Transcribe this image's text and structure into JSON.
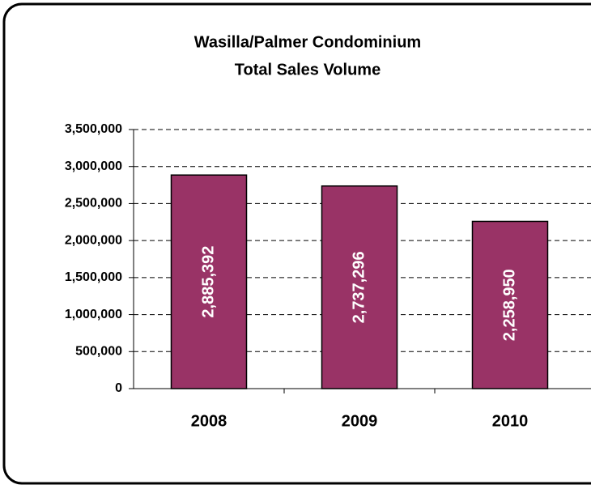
{
  "chart_data": {
    "type": "bar",
    "title": [
      "Wasilla/Palmer Condominium",
      "Total Sales Volume"
    ],
    "categories": [
      "2008",
      "2009",
      "2010"
    ],
    "values": [
      2885392,
      2737296,
      2258950
    ],
    "value_labels": [
      "2,885,392",
      "2,737,296",
      "2,258,950"
    ],
    "color": "#993366",
    "ylim": [
      0,
      3500000
    ],
    "yticks": [
      0,
      {
        "value": 500000,
        "label": "500,000"
      },
      {
        "value": 1000000,
        "label": "1,000,000"
      },
      {
        "value": 1500000,
        "label": "1,500,000"
      },
      {
        "value": 2000000,
        "label": "2,000,000"
      },
      {
        "value": 2500000,
        "label": "2,500,000"
      },
      {
        "value": 3000000,
        "label": "3,000,000"
      },
      {
        "value": 3500000,
        "label": "3,500,000"
      }
    ],
    "grid": true
  }
}
